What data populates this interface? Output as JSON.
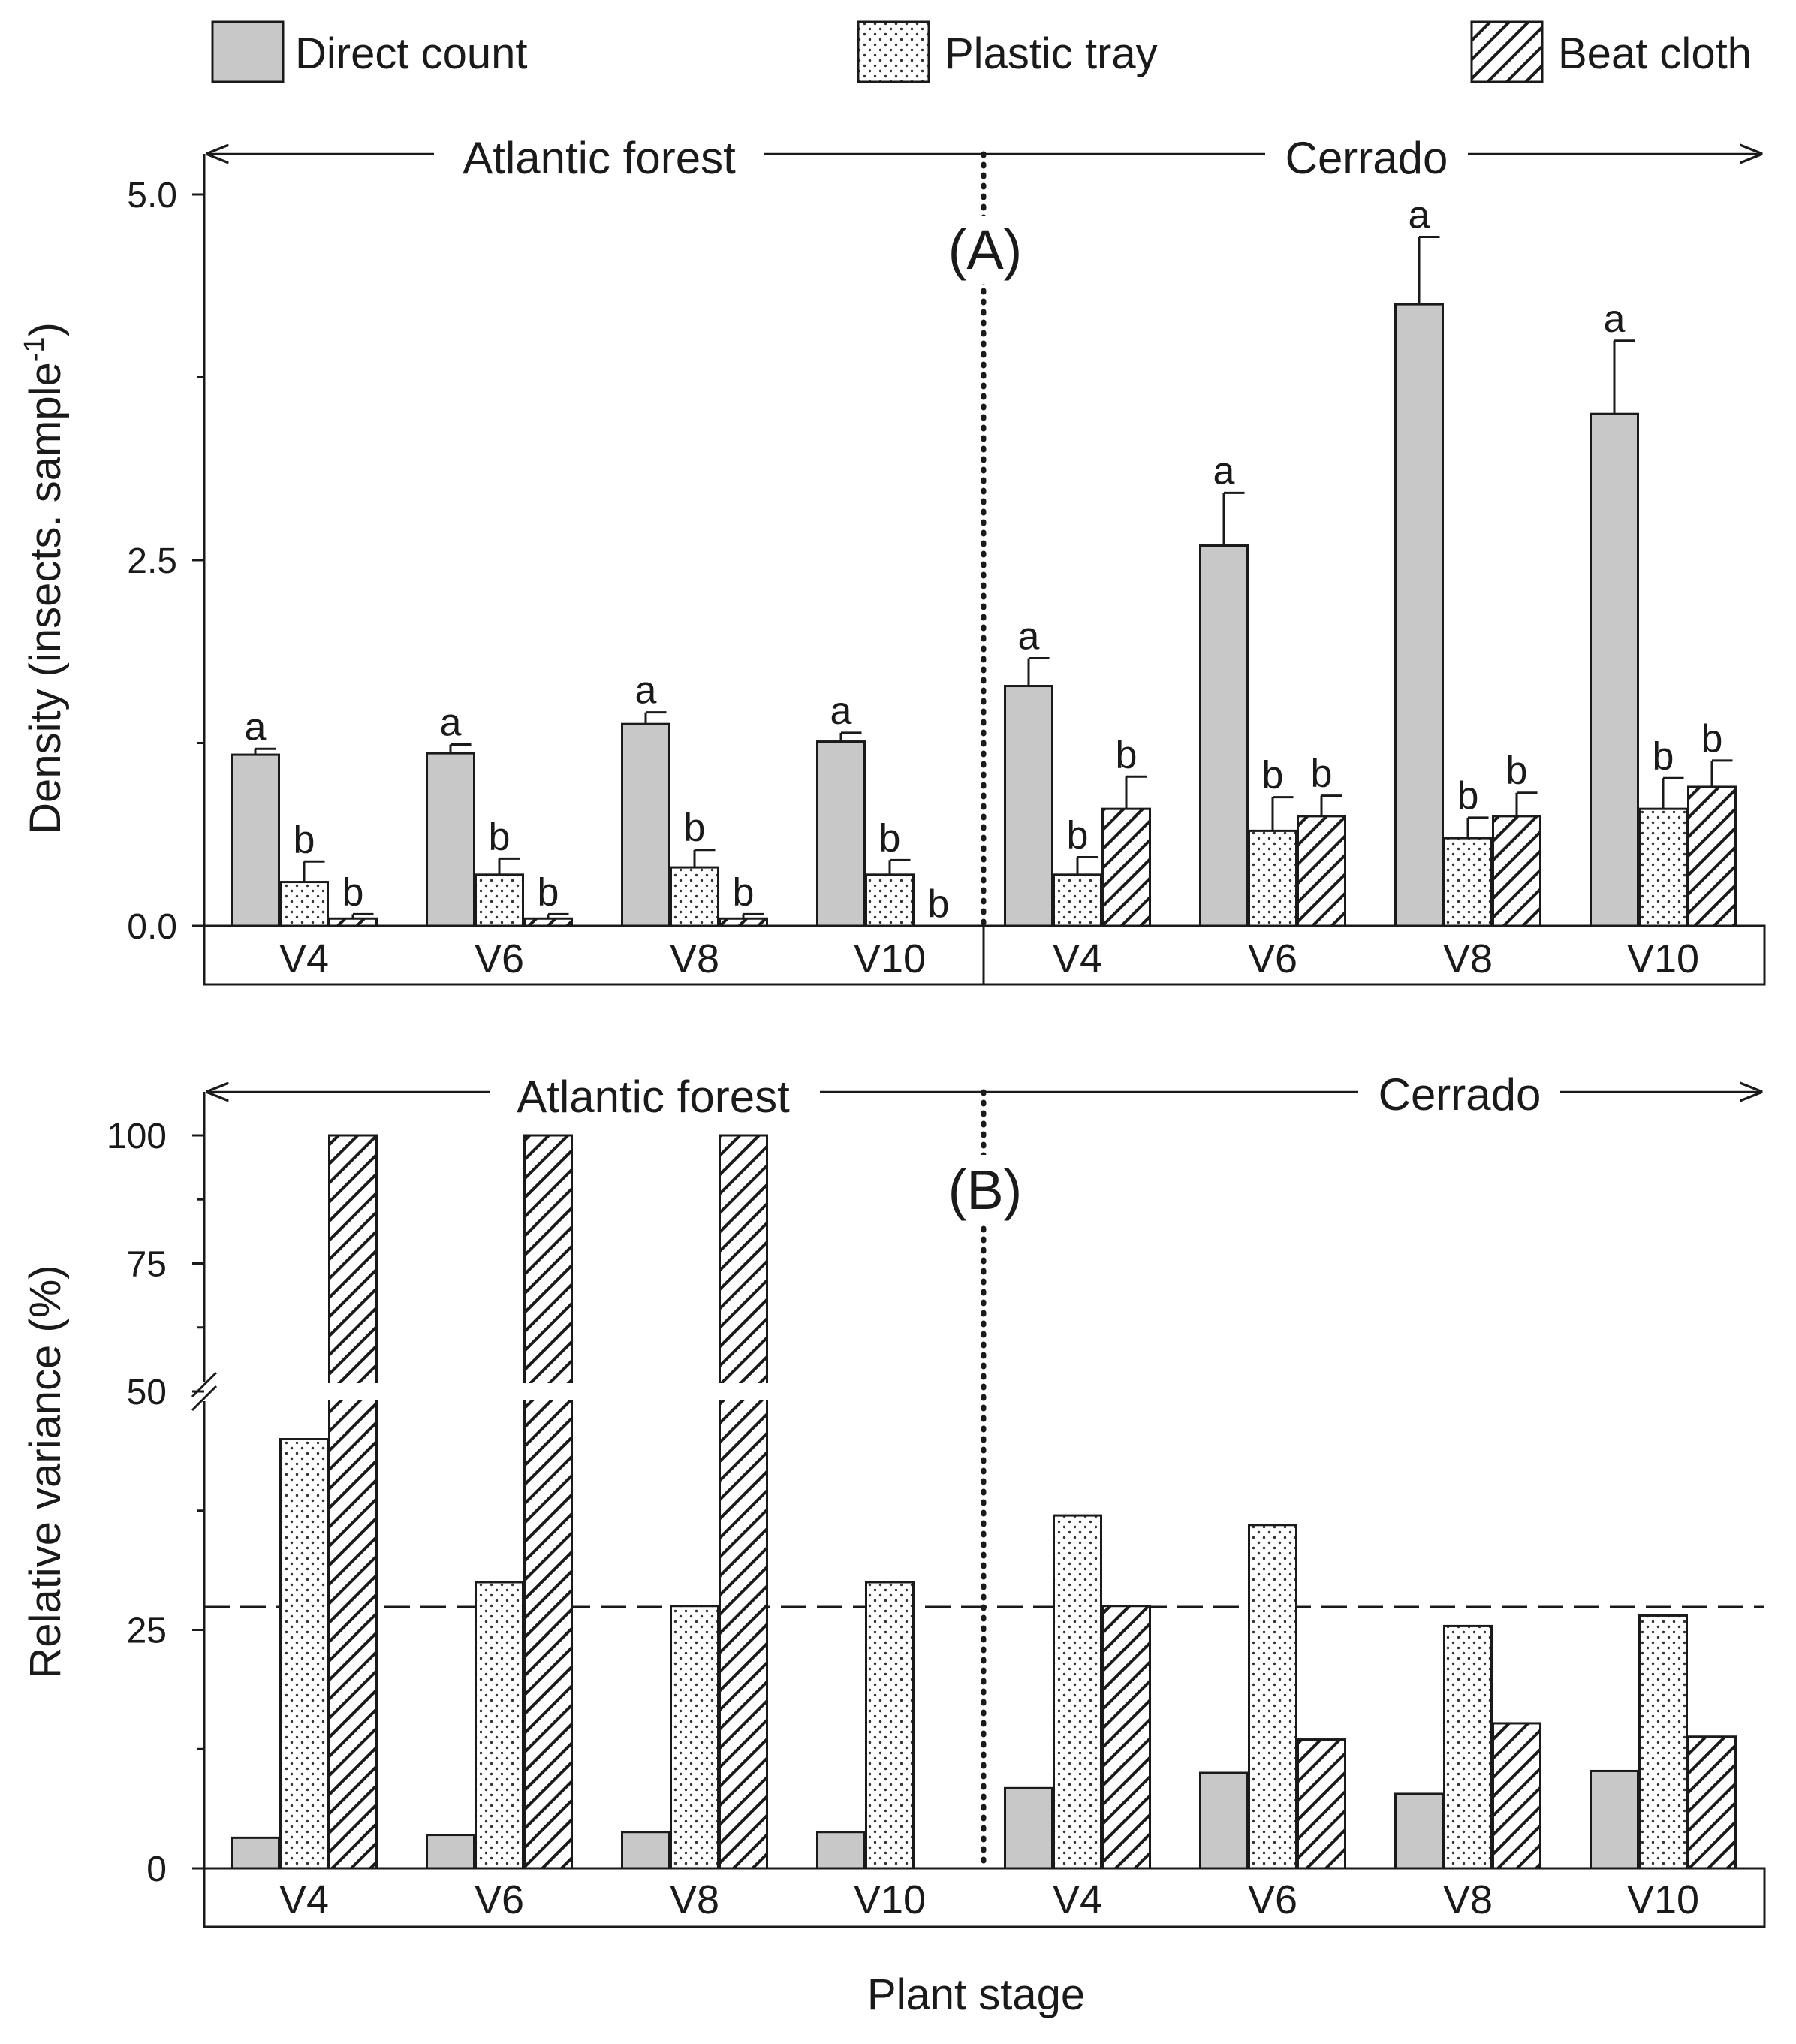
{
  "chart_data": [
    {
      "type": "bar",
      "panel": "(A)",
      "ylabel_main": "Density (insects. sample",
      "ylabel_sup": "-1",
      "ylabel_end": ")",
      "ylim": [
        0,
        5.0
      ],
      "yticks": [
        "0.0",
        "2.5",
        "5.0"
      ],
      "region_labels": [
        "Atlantic forest",
        "Cerrado"
      ],
      "categories": [
        "V4",
        "V6",
        "V8",
        "V10",
        "V4",
        "V6",
        "V8",
        "V10"
      ],
      "series": [
        {
          "name": "Direct count",
          "pattern": "gray",
          "values": [
            1.17,
            1.18,
            1.38,
            1.26,
            1.64,
            2.6,
            4.25,
            3.5
          ],
          "errors": [
            0.04,
            0.06,
            0.08,
            0.06,
            0.19,
            0.36,
            0.46,
            0.5
          ],
          "letters": [
            "a",
            "a",
            "a",
            "a",
            "a",
            "a",
            "a",
            "a"
          ]
        },
        {
          "name": "Plastic tray",
          "pattern": "dots",
          "values": [
            0.3,
            0.35,
            0.4,
            0.35,
            0.35,
            0.65,
            0.6,
            0.8
          ],
          "errors": [
            0.14,
            0.11,
            0.12,
            0.1,
            0.12,
            0.23,
            0.14,
            0.21
          ],
          "letters": [
            "b",
            "b",
            "b",
            "b",
            "b",
            "b",
            "b",
            "b"
          ]
        },
        {
          "name": "Beat cloth",
          "pattern": "hatch",
          "values": [
            0.05,
            0.05,
            0.05,
            0.0,
            0.8,
            0.75,
            0.75,
            0.95
          ],
          "errors": [
            0.03,
            0.03,
            0.03,
            0.0,
            0.22,
            0.14,
            0.16,
            0.18
          ],
          "letters": [
            "b",
            "b",
            "b",
            "b",
            "b",
            "b",
            "b",
            "b"
          ]
        }
      ]
    },
    {
      "type": "bar",
      "panel": "(B)",
      "ylabel": "Relative variance (%)",
      "ylim": [
        0,
        100
      ],
      "axis_break": [
        50,
        50
      ],
      "yticks": [
        "0",
        "25",
        "50",
        "75",
        "100"
      ],
      "reference_line": 25,
      "region_labels": [
        "Atlantic forest",
        "Cerrado"
      ],
      "categories": [
        "V4",
        "V6",
        "V8",
        "V10",
        "V4",
        "V6",
        "V8",
        "V10"
      ],
      "series": [
        {
          "name": "Direct count",
          "pattern": "gray",
          "values": [
            3.2,
            3.5,
            3.8,
            3.8,
            8.4,
            10.0,
            7.8,
            10.2
          ]
        },
        {
          "name": "Plastic tray",
          "pattern": "dots",
          "values": [
            45,
            30,
            27.5,
            30,
            37,
            36,
            25.4,
            26.5
          ]
        },
        {
          "name": "Beat cloth",
          "pattern": "hatch",
          "values": [
            100,
            100,
            100,
            null,
            27.5,
            13.5,
            15.2,
            13.8
          ]
        }
      ]
    }
  ],
  "xlabel": "Plant stage",
  "legend": [
    {
      "label": "Direct count",
      "pattern": "gray"
    },
    {
      "label": "Plastic tray",
      "pattern": "dots"
    },
    {
      "label": "Beat cloth",
      "pattern": "hatch"
    }
  ]
}
